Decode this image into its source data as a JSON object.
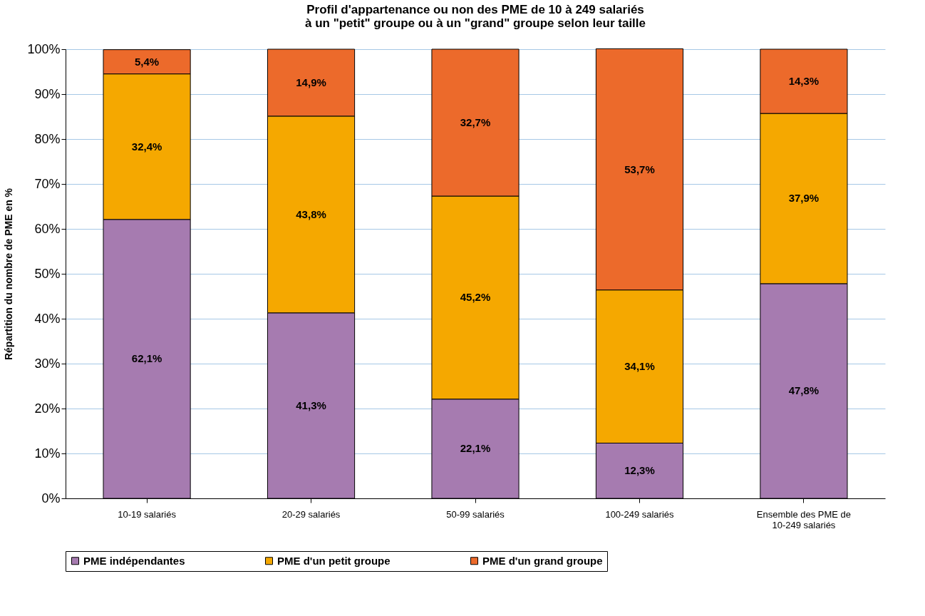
{
  "chart_data": {
    "type": "bar",
    "stacked": true,
    "title": "Profil d'appartenance ou non des PME de 10 à 249 salariés à un \"petit\" groupe ou à un \"grand\" groupe selon leur taille",
    "ylabel": "Répartition du nombre de PME en %",
    "categories": [
      "10-19 salariés",
      "20-29 salariés",
      "50-99 salariés",
      "100-249 salariés",
      "Ensemble des PME de 10-249 salariés"
    ],
    "series": [
      {
        "name": "PME indépendantes",
        "color": "#a67bb0",
        "values": [
          62.1,
          41.3,
          22.1,
          12.3,
          47.8
        ],
        "value_labels": [
          "62,1%",
          "41,3%",
          "22,1%",
          "12,3%",
          "47,8%"
        ]
      },
      {
        "name": "PME d'un petit groupe",
        "color": "#f5a800",
        "values": [
          32.4,
          43.8,
          45.2,
          34.1,
          37.9
        ],
        "value_labels": [
          "32,4%",
          "43,8%",
          "45,2%",
          "34,1%",
          "37,9%"
        ]
      },
      {
        "name": "PME d'un grand groupe",
        "color": "#ec6a2b",
        "values": [
          5.4,
          14.9,
          32.7,
          53.7,
          14.3
        ],
        "value_labels": [
          "5,4%",
          "14,9%",
          "32,7%",
          "53,7%",
          "14,3%"
        ]
      }
    ],
    "ylim": [
      0,
      100
    ],
    "yticks": [
      {
        "value": 0,
        "label": "0%"
      },
      {
        "value": 10,
        "label": "10%"
      },
      {
        "value": 20,
        "label": "20%"
      },
      {
        "value": 30,
        "label": "30%"
      },
      {
        "value": 40,
        "label": "40%"
      },
      {
        "value": 50,
        "label": "50%"
      },
      {
        "value": 60,
        "label": "60%"
      },
      {
        "value": 70,
        "label": "70%"
      },
      {
        "value": 80,
        "label": "80%"
      },
      {
        "value": 90,
        "label": "90%"
      },
      {
        "value": 100,
        "label": "100%"
      }
    ],
    "grid": "y",
    "legend": "bottom"
  }
}
